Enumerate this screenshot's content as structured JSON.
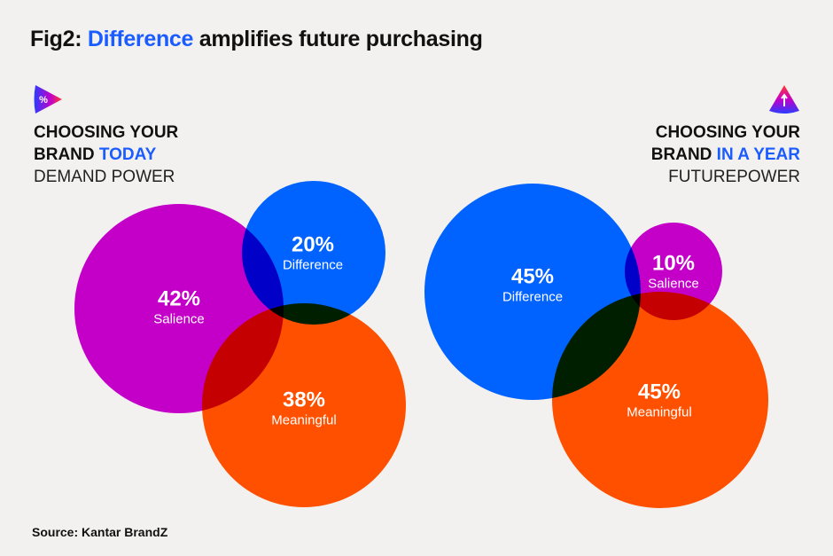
{
  "title": {
    "prefix": "Fig2: ",
    "highlight": "Difference",
    "suffix": " amplifies future purchasing"
  },
  "left": {
    "icon": "percent-play-icon",
    "line1": "CHOOSING YOUR",
    "line2_plain": "BRAND ",
    "line2_highlight": "TODAY",
    "subtitle": "DEMAND POWER",
    "circles": {
      "salience": {
        "percent": "42%",
        "name": "Salience",
        "value": 42
      },
      "difference": {
        "percent": "20%",
        "name": "Difference",
        "value": 20
      },
      "meaningful": {
        "percent": "38%",
        "name": "Meaningful",
        "value": 38
      }
    }
  },
  "right": {
    "icon": "arrow-up-cone-icon",
    "line1": "CHOOSING YOUR",
    "line2_plain": "BRAND ",
    "line2_highlight": "IN A YEAR",
    "subtitle": "FUTUREPOWER",
    "circles": {
      "difference": {
        "percent": "45%",
        "name": "Difference",
        "value": 45
      },
      "salience": {
        "percent": "10%",
        "name": "Salience",
        "value": 10
      },
      "meaningful": {
        "percent": "45%",
        "name": "Meaningful",
        "value": 45
      }
    }
  },
  "source": "Source: Kantar BrandZ",
  "colors": {
    "salience": "#c400c8",
    "difference": "#0062ff",
    "meaningful": "#ff5000",
    "highlight": "#1a5cff",
    "background": "#f2f1ef"
  }
}
